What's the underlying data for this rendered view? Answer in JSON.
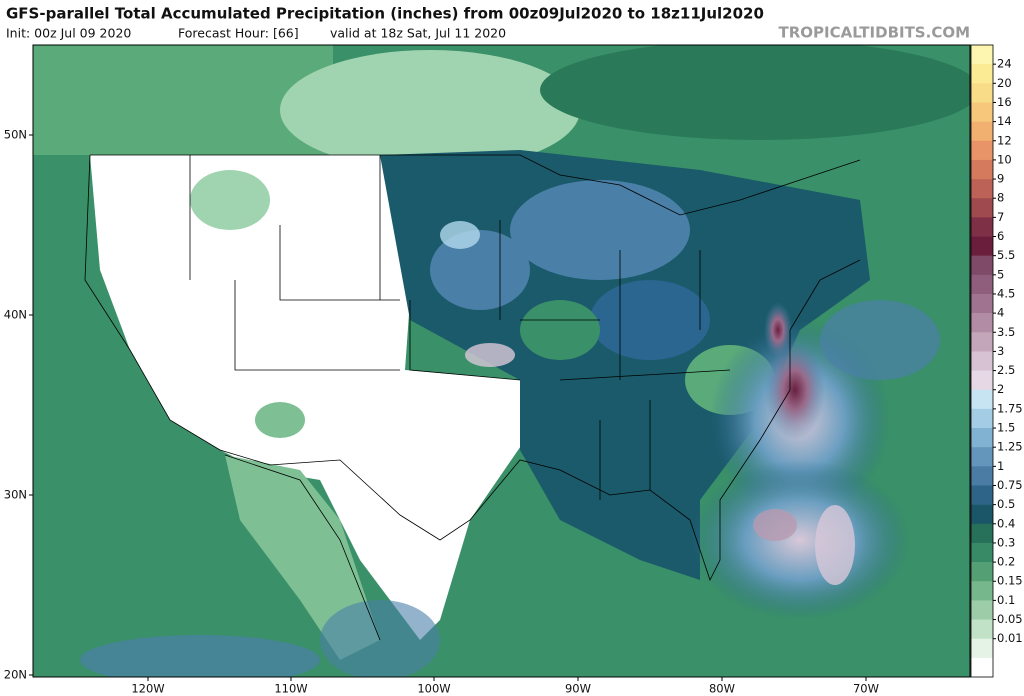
{
  "header": {
    "title": "GFS-parallel Total Accumulated Precipitation (inches) from 00z09Jul2020 to 18z11Jul2020",
    "init": "Init: 00z Jul 09 2020",
    "forecast_hour": "Forecast Hour: [66]",
    "valid": "valid at 18z Sat, Jul 11 2020",
    "watermark": "TROPICALTIDBITS.COM"
  },
  "colorbar": {
    "levels": [
      "24",
      "20",
      "16",
      "14",
      "12",
      "10",
      "9",
      "8",
      "7",
      "6",
      "5.5",
      "5",
      "4.5",
      "4",
      "3.5",
      "3",
      "2.5",
      "2",
      "1.75",
      "1.5",
      "1.25",
      "1",
      "0.75",
      "0.5",
      "0.4",
      "0.3",
      "0.2",
      "0.15",
      "0.1",
      "0.05",
      "0.01"
    ],
    "colors": [
      "#fdf6b0",
      "#fbeb94",
      "#f9dc88",
      "#f7c87c",
      "#f2b070",
      "#e89468",
      "#d67a5e",
      "#bc6256",
      "#9e4a4e",
      "#7e3046",
      "#6a1e3c",
      "#7e4a68",
      "#8e5e7c",
      "#a07490",
      "#b28ca4",
      "#c4a6ba",
      "#d6c2d2",
      "#e6d8e4",
      "#c6e4f2",
      "#a4cce4",
      "#82b2d2",
      "#6496bc",
      "#4a7ca4",
      "#2e6488",
      "#1a5568",
      "#27705a",
      "#388a66",
      "#559f74",
      "#76b88c",
      "#9ccca8",
      "#c2e2c8",
      "#e4f3e6",
      "#ffffff"
    ]
  },
  "axes": {
    "lat_labels": [
      "50N",
      "40N",
      "30N",
      "20N"
    ],
    "lon_labels": [
      "120W",
      "110W",
      "100W",
      "90W",
      "80W",
      "70W"
    ]
  }
}
